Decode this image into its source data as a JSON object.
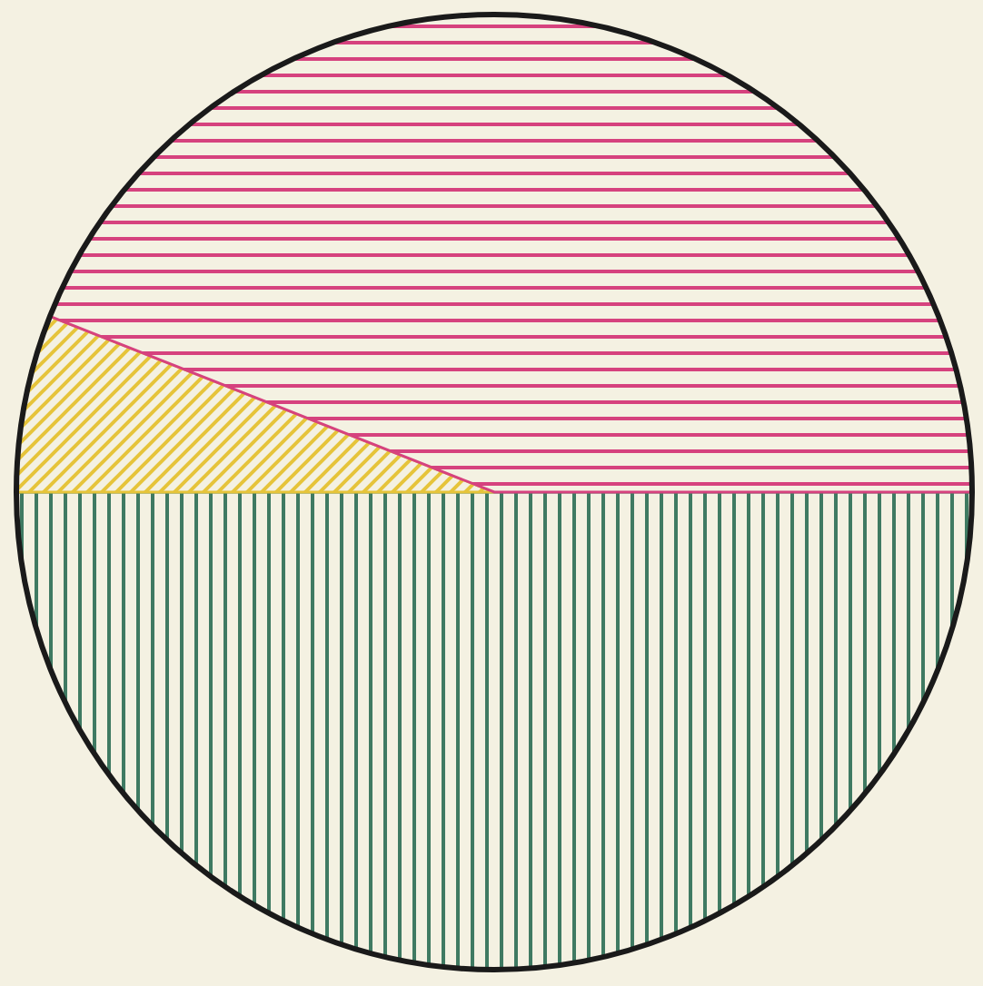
{
  "chart_data": {
    "type": "pie",
    "categories": [
      null,
      null,
      null
    ],
    "values": [
      50,
      6,
      44
    ],
    "colors": [
      "#3f7a62",
      "#e6c43a",
      "#d6427e"
    ],
    "legend": false
  }
}
